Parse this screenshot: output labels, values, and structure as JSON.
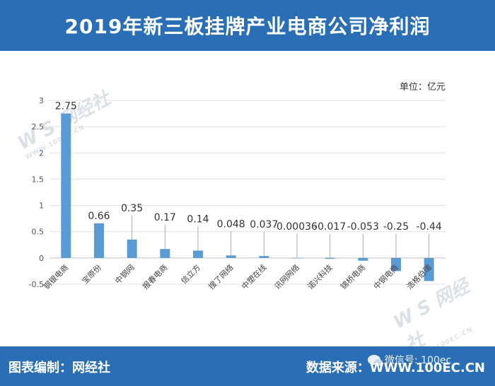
{
  "header": {
    "title": "2019年新三板挂牌产业电商公司净利润"
  },
  "unit_label": "单位：亿元",
  "footer": {
    "left_text": "图表编制：网经社",
    "right_text": "数据来源：WWW.100EC.CN",
    "wechat_text": "微信号: 100ec"
  },
  "watermark": {
    "name": "网经社",
    "url": "WWW.100EC.CN"
  },
  "colors": {
    "brand": "#2a6fb6",
    "bar": "#5b9bd5"
  },
  "chart_data": {
    "type": "bar",
    "title": "2019年新三板挂牌产业电商公司净利润",
    "categories": [
      "钢银电商",
      "宝原份",
      "中钢网",
      "报春电商",
      "信立方",
      "搜了网络",
      "中塑在线",
      "讯网网络",
      "诺兴科技",
      "锦桥电商",
      "中钢电商",
      "浩格伯瑞"
    ],
    "values": [
      2.75,
      0.66,
      0.35,
      0.17,
      0.14,
      0.048,
      0.037,
      0.00036,
      -0.017,
      -0.053,
      -0.25,
      -0.44
    ],
    "value_labels": [
      "2.75",
      "0.66",
      "0.35",
      "0.17",
      "0.14",
      "0.048",
      "0.037",
      "0.00036",
      "-0.017",
      "-0.053",
      "-0.25",
      "-0.44"
    ],
    "ylim": [
      -0.5,
      3
    ],
    "yticks": [
      -0.5,
      0,
      0.5,
      1,
      1.5,
      2,
      2.5,
      3
    ],
    "ytick_labels": [
      "-0.5",
      "0",
      "0.5",
      "1",
      "1.5",
      "2",
      "2.5",
      "3"
    ],
    "grid": true,
    "xlabel": "",
    "ylabel": ""
  }
}
